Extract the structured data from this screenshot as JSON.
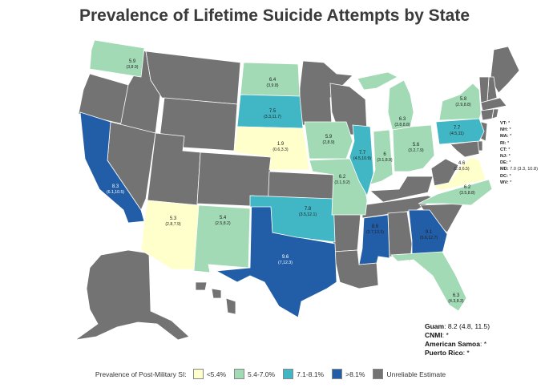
{
  "title": "Prevalence of Lifetime Suicide Attempts by State",
  "colors": {
    "lt54": "#ffffcc",
    "c54_70": "#a1dab4",
    "c71_81": "#41b6c4",
    "gt81": "#225ea8",
    "unreliable": "#737373"
  },
  "states": {
    "wa": {
      "value": "5.9",
      "ci": "(3,8.9)",
      "cat": "c54_70"
    },
    "ca": {
      "value": "8.3",
      "ci": "(6.1,10.5)",
      "cat": "gt81"
    },
    "az": {
      "value": "5.3",
      "ci": "(2.8,7.9)",
      "cat": "lt54"
    },
    "nm": {
      "value": "5.4",
      "ci": "(2.5,8.2)",
      "cat": "c54_70"
    },
    "tx": {
      "value": "9.6",
      "ci": "(7,12.3)",
      "cat": "gt81"
    },
    "nd": {
      "value": "6.4",
      "ci": "(3,9.8)",
      "cat": "c54_70"
    },
    "sd": {
      "value": "7.5",
      "ci": "(3.3,11.7)",
      "cat": "c71_81"
    },
    "ne": {
      "value": "1.9",
      "ci": "(0.6,3.3)",
      "cat": "lt54"
    },
    "ok": {
      "value": "7.8",
      "ci": "(3.5,12.1)",
      "cat": "c71_81"
    },
    "ia": {
      "value": "5.9",
      "ci": "(2,8.9)",
      "cat": "c54_70"
    },
    "mo": {
      "value": "6.2",
      "ci": "(3.1,9.2)",
      "cat": "c54_70"
    },
    "il": {
      "value": "7.7",
      "ci": "(4.5,10.9)",
      "cat": "c71_81"
    },
    "ms": {
      "value": "8.6",
      "ci": "(3.7,13.5)",
      "cat": "gt81"
    },
    "mi": {
      "value": "6.3",
      "ci": "(3.8,8.8)",
      "cat": "c54_70"
    },
    "in": {
      "value": "6",
      "ci": "(3.1,8.9)",
      "cat": "c54_70"
    },
    "oh": {
      "value": "5.6",
      "ci": "(3.2,7.9)",
      "cat": "c54_70"
    },
    "ga": {
      "value": "9.1",
      "ci": "(5.6,12.7)",
      "cat": "gt81"
    },
    "fl": {
      "value": "6.3",
      "ci": "(4.3,8.3)",
      "cat": "c54_70"
    },
    "nc": {
      "value": "6.2",
      "ci": "(3.5,8.8)",
      "cat": "c54_70"
    },
    "va": {
      "value": "4.6",
      "ci": "(2.8,6.5)",
      "cat": "lt54"
    },
    "pa": {
      "value": "7.7",
      "ci": "(4.5,11)",
      "cat": "c71_81"
    },
    "ny": {
      "value": "5.8",
      "ci": "(2.9,8.8)",
      "cat": "c54_70"
    }
  },
  "northeast_list": [
    {
      "abbr": "VT:",
      "value": "*"
    },
    {
      "abbr": "NH:",
      "value": "*"
    },
    {
      "abbr": "MA:",
      "value": "*"
    },
    {
      "abbr": "RI:",
      "value": "*"
    },
    {
      "abbr": "CT:",
      "value": "*"
    },
    {
      "abbr": "NJ:",
      "value": "*"
    },
    {
      "abbr": "DE:",
      "value": "*"
    },
    {
      "abbr": "MD:",
      "value": "7.0 (3.3, 10.8)"
    },
    {
      "abbr": "DC:",
      "value": "*"
    },
    {
      "abbr": "WV:",
      "value": "*"
    }
  ],
  "territories": [
    {
      "name": "Guam",
      "value": ": 8.2 (4.8, 11.5)"
    },
    {
      "name": "CNMI",
      "value": ": *"
    },
    {
      "name": "American Samoa",
      "value": ": *"
    },
    {
      "name": "Puerto Rico",
      "value": ": *"
    }
  ],
  "legend": {
    "title": "Prevalence of Post-Military SI:",
    "items": [
      {
        "label": "<5.4%",
        "cat": "lt54"
      },
      {
        "label": "5.4-7.0%",
        "cat": "c54_70"
      },
      {
        "label": "7.1-8.1%",
        "cat": "c71_81"
      },
      {
        "label": ">8.1%",
        "cat": "gt81"
      },
      {
        "label": "Unreliable Estimate",
        "cat": "unreliable"
      }
    ]
  }
}
